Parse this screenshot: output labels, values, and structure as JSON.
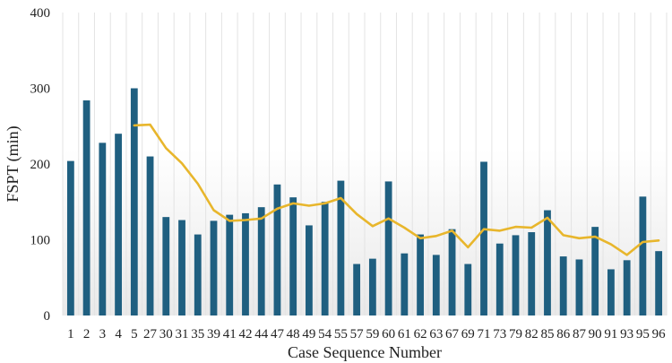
{
  "chart_data": {
    "type": "bar",
    "title": "",
    "xlabel": "Case Sequence Number",
    "ylabel": "FSPT (min)",
    "ylim": [
      0,
      400
    ],
    "yticks": [
      0,
      100,
      200,
      300,
      400
    ],
    "grid": "vertical",
    "categories": [
      "1",
      "2",
      "3",
      "4",
      "5",
      "27",
      "30",
      "31",
      "35",
      "39",
      "41",
      "42",
      "44",
      "47",
      "48",
      "49",
      "54",
      "55",
      "57",
      "59",
      "60",
      "61",
      "62",
      "63",
      "67",
      "69",
      "71",
      "73",
      "79",
      "82",
      "85",
      "86",
      "87",
      "90",
      "91",
      "93",
      "95",
      "96"
    ],
    "series": [
      {
        "type": "bar",
        "color": "#1f5f80",
        "values": [
          204,
          284,
          228,
          240,
          300,
          210,
          130,
          126,
          107,
          125,
          133,
          135,
          143,
          173,
          156,
          119,
          150,
          178,
          68,
          75,
          177,
          82,
          107,
          80,
          114,
          68,
          203,
          95,
          106,
          110,
          139,
          78,
          74,
          117,
          61,
          73,
          157,
          85
        ]
      },
      {
        "type": "line",
        "color": "#e8b62c",
        "values": [
          null,
          null,
          null,
          null,
          251,
          252,
          221,
          201,
          174,
          139,
          125,
          126,
          128,
          141,
          148,
          145,
          148,
          155,
          134,
          118,
          128,
          116,
          102,
          105,
          112,
          90,
          114,
          112,
          117,
          116,
          129,
          106,
          102,
          104,
          94,
          80,
          97,
          99
        ]
      }
    ]
  }
}
